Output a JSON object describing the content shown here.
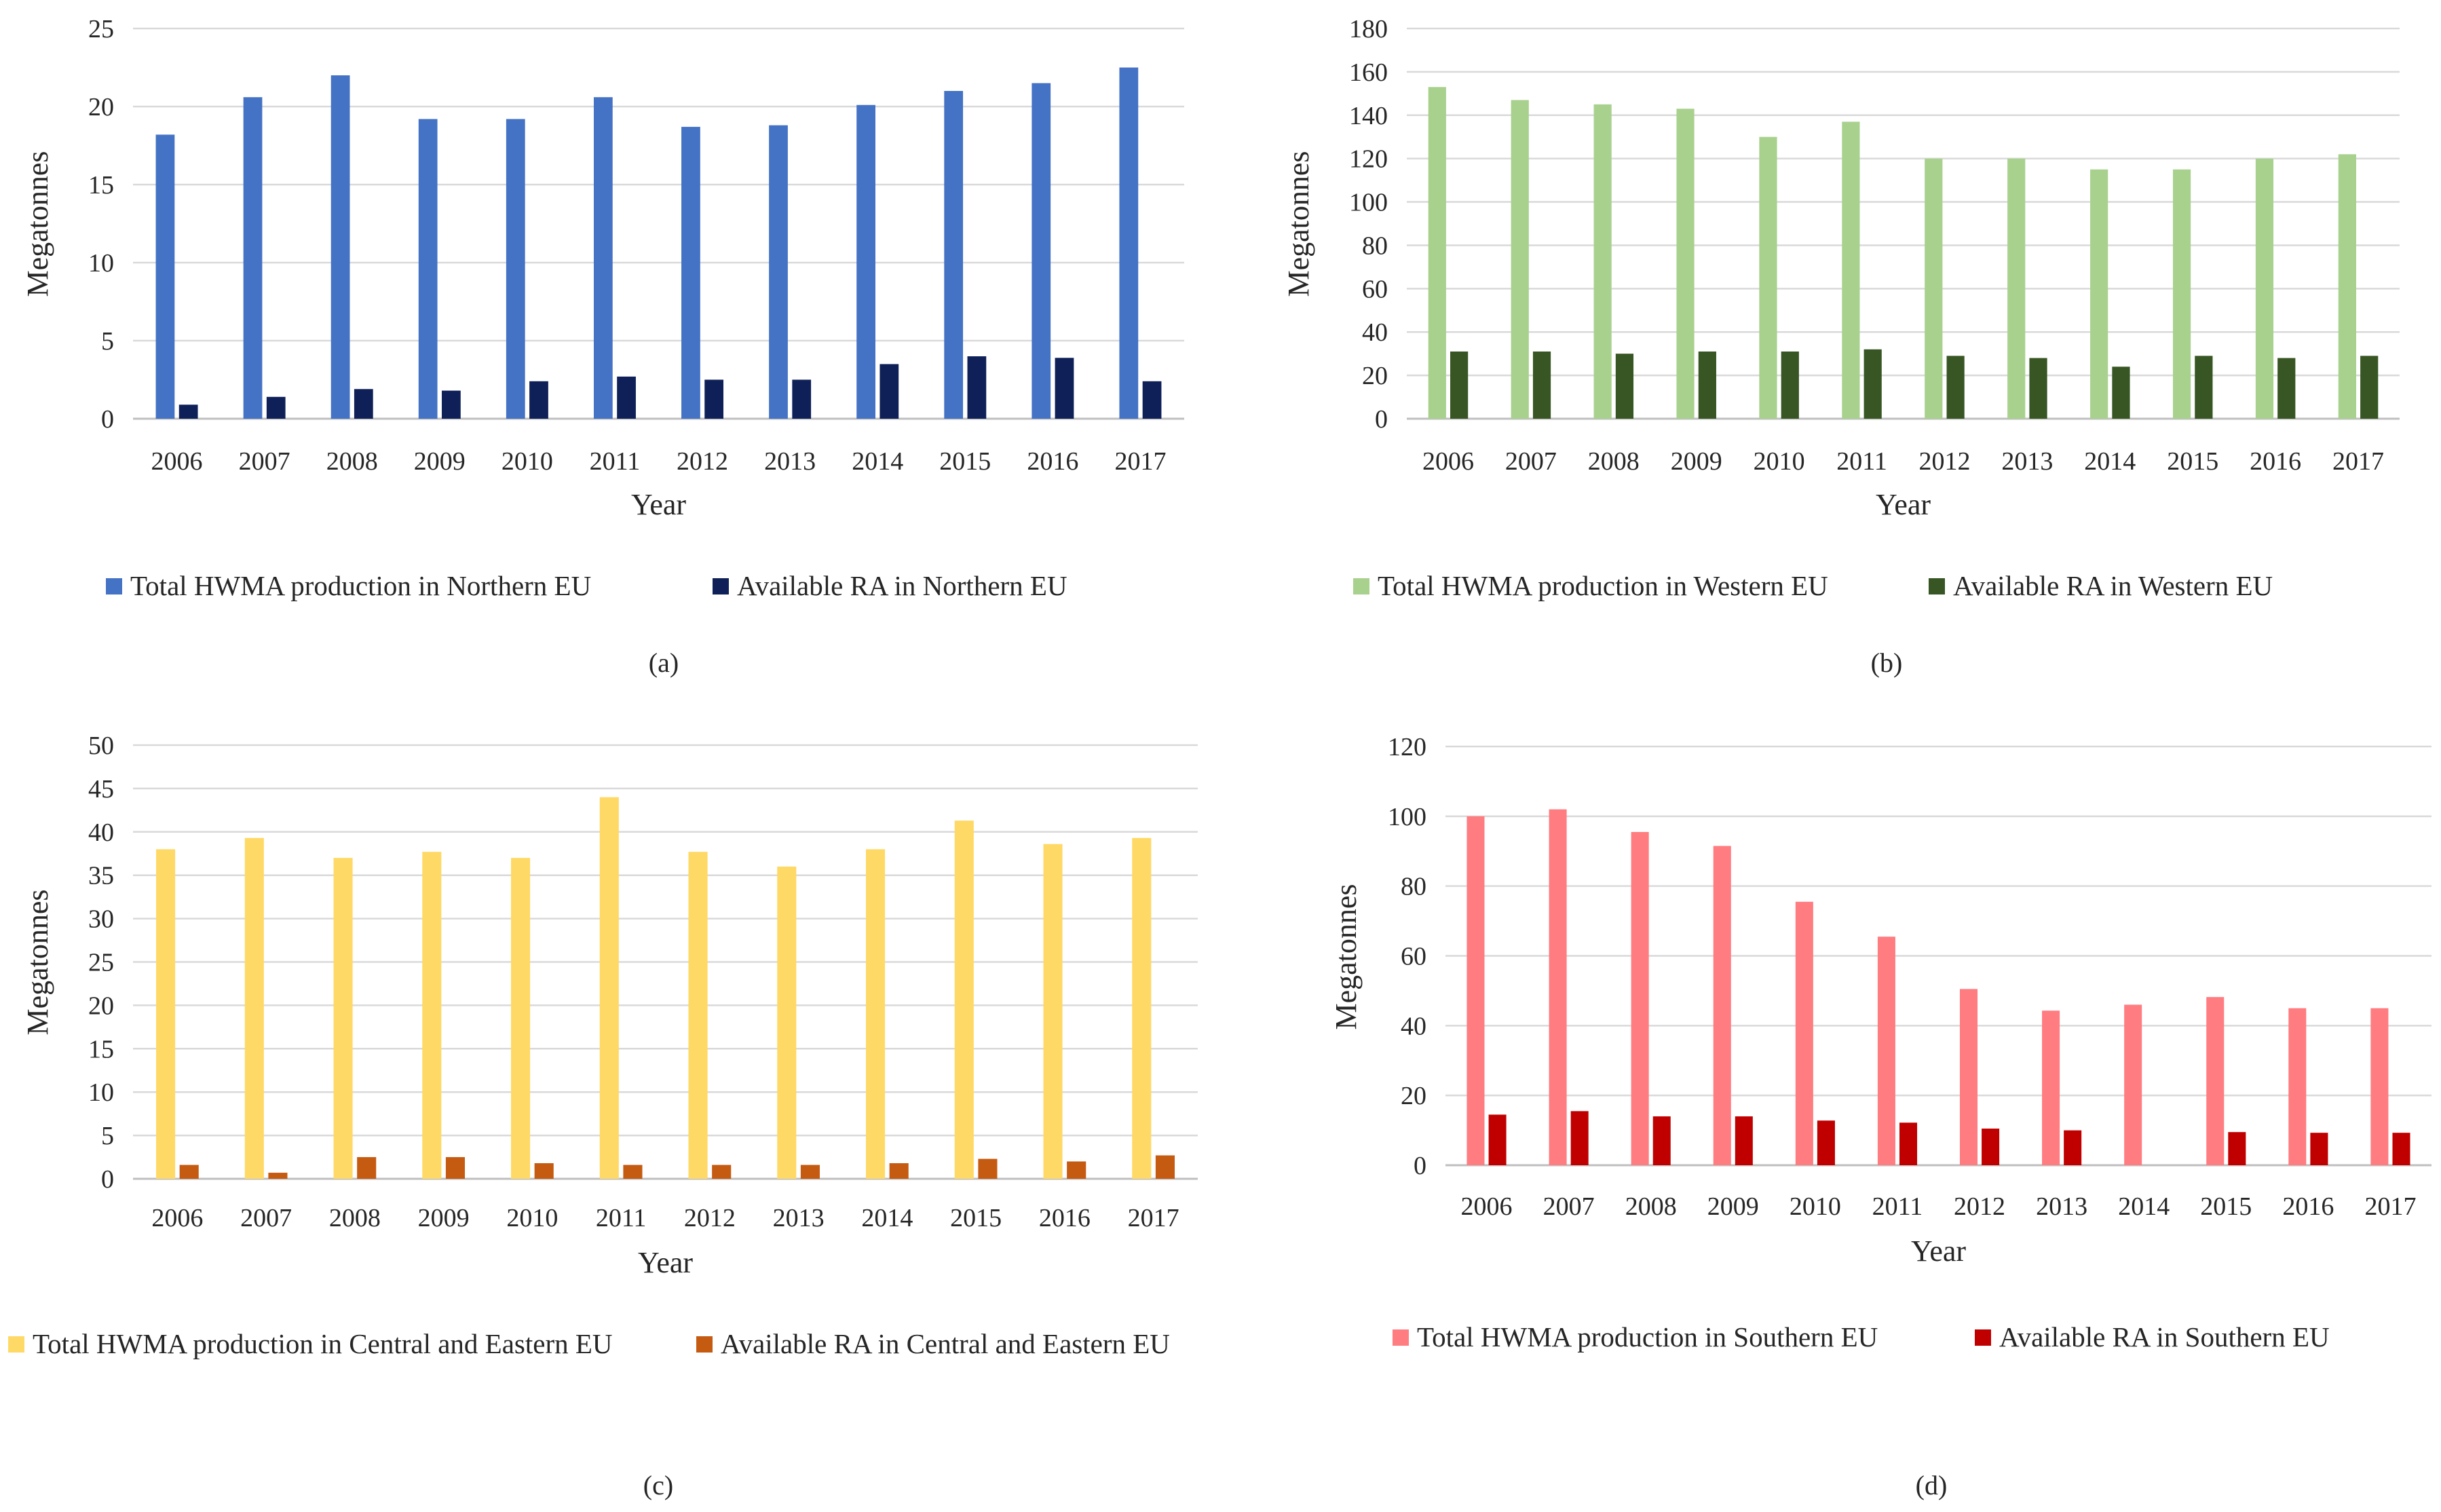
{
  "chart_data": [
    {
      "id": "a",
      "type": "bar",
      "caption": "(a)",
      "xlabel": "Year",
      "ylabel": "Megatonnes",
      "ylim": [
        0,
        25
      ],
      "yticks": [
        "0",
        "5",
        "10",
        "15",
        "20",
        "25"
      ],
      "grid": true,
      "legend_position": "bottom",
      "categories": [
        "2006",
        "2007",
        "2008",
        "2009",
        "2010",
        "2011",
        "2012",
        "2013",
        "2014",
        "2015",
        "2016",
        "2017"
      ],
      "series": [
        {
          "name": "Total HWMA production in Northern EU",
          "color": "#4472C4",
          "values": [
            18.2,
            20.6,
            22.0,
            19.2,
            19.2,
            20.6,
            18.7,
            18.8,
            20.1,
            21.0,
            21.5,
            22.5
          ]
        },
        {
          "name": "Available RA in Northern EU",
          "color": "#0E2057",
          "values": [
            0.9,
            1.4,
            1.9,
            1.8,
            2.4,
            2.7,
            2.5,
            2.5,
            3.5,
            4.0,
            3.9,
            2.4
          ]
        }
      ]
    },
    {
      "id": "b",
      "type": "bar",
      "caption": "(b)",
      "xlabel": "Year",
      "ylabel": "Megatonnes",
      "ylim": [
        0,
        180
      ],
      "yticks": [
        "0",
        "20",
        "40",
        "60",
        "80",
        "100",
        "120",
        "140",
        "160",
        "180"
      ],
      "grid": true,
      "legend_position": "bottom",
      "categories": [
        "2006",
        "2007",
        "2008",
        "2009",
        "2010",
        "2011",
        "2012",
        "2013",
        "2014",
        "2015",
        "2016",
        "2017"
      ],
      "series": [
        {
          "name": "Total HWMA production in Western EU",
          "color": "#A9D18E",
          "values": [
            153,
            147,
            145,
            143,
            130,
            137,
            120,
            120,
            115,
            115,
            120,
            122
          ]
        },
        {
          "name": "Available RA in Western EU",
          "color": "#375623",
          "values": [
            31,
            31,
            30,
            31,
            31,
            32,
            29,
            28,
            24,
            29,
            28,
            29
          ]
        }
      ]
    },
    {
      "id": "c",
      "type": "bar",
      "caption": "(c)",
      "xlabel": "Year",
      "ylabel": "Megatonnes",
      "ylim": [
        0,
        50
      ],
      "yticks": [
        "0",
        "5",
        "10",
        "15",
        "20",
        "25",
        "30",
        "35",
        "40",
        "45",
        "50"
      ],
      "grid": true,
      "legend_position": "bottom",
      "categories": [
        "2006",
        "2007",
        "2008",
        "2009",
        "2010",
        "2011",
        "2012",
        "2013",
        "2014",
        "2015",
        "2016",
        "2017"
      ],
      "series": [
        {
          "name": "Total HWMA production in Central and Eastern EU",
          "color": "#FFD966",
          "values": [
            38.0,
            39.3,
            37.0,
            37.7,
            37.0,
            44.0,
            37.7,
            36.0,
            38.0,
            41.3,
            38.6,
            39.3
          ]
        },
        {
          "name": "Available RA in Central and Eastern EU",
          "color": "#C55A11",
          "values": [
            1.6,
            0.7,
            2.5,
            2.5,
            1.8,
            1.6,
            1.6,
            1.6,
            1.8,
            2.3,
            2.0,
            2.7
          ]
        }
      ]
    },
    {
      "id": "d",
      "type": "bar",
      "caption": "(d)",
      "xlabel": "Year",
      "ylabel": "Megatonnes",
      "ylim": [
        0,
        120
      ],
      "yticks": [
        "0",
        "20",
        "40",
        "60",
        "80",
        "100",
        "120"
      ],
      "grid": true,
      "legend_position": "bottom",
      "categories": [
        "2006",
        "2007",
        "2008",
        "2009",
        "2010",
        "2011",
        "2012",
        "2013",
        "2014",
        "2015",
        "2016",
        "2017"
      ],
      "series": [
        {
          "name": "Total HWMA production in Southern EU",
          "color": "#FF7C80",
          "values": [
            100,
            102,
            95.5,
            91.5,
            75.5,
            65.5,
            50.5,
            44.3,
            46.0,
            48.2,
            45.0,
            45.0
          ]
        },
        {
          "name": "Available RA in Southern EU",
          "color": "#C00000",
          "values": [
            14.5,
            15.5,
            14.0,
            14.0,
            12.8,
            12.2,
            10.5,
            10.0,
            0,
            9.5,
            9.3,
            9.3
          ]
        }
      ]
    }
  ]
}
